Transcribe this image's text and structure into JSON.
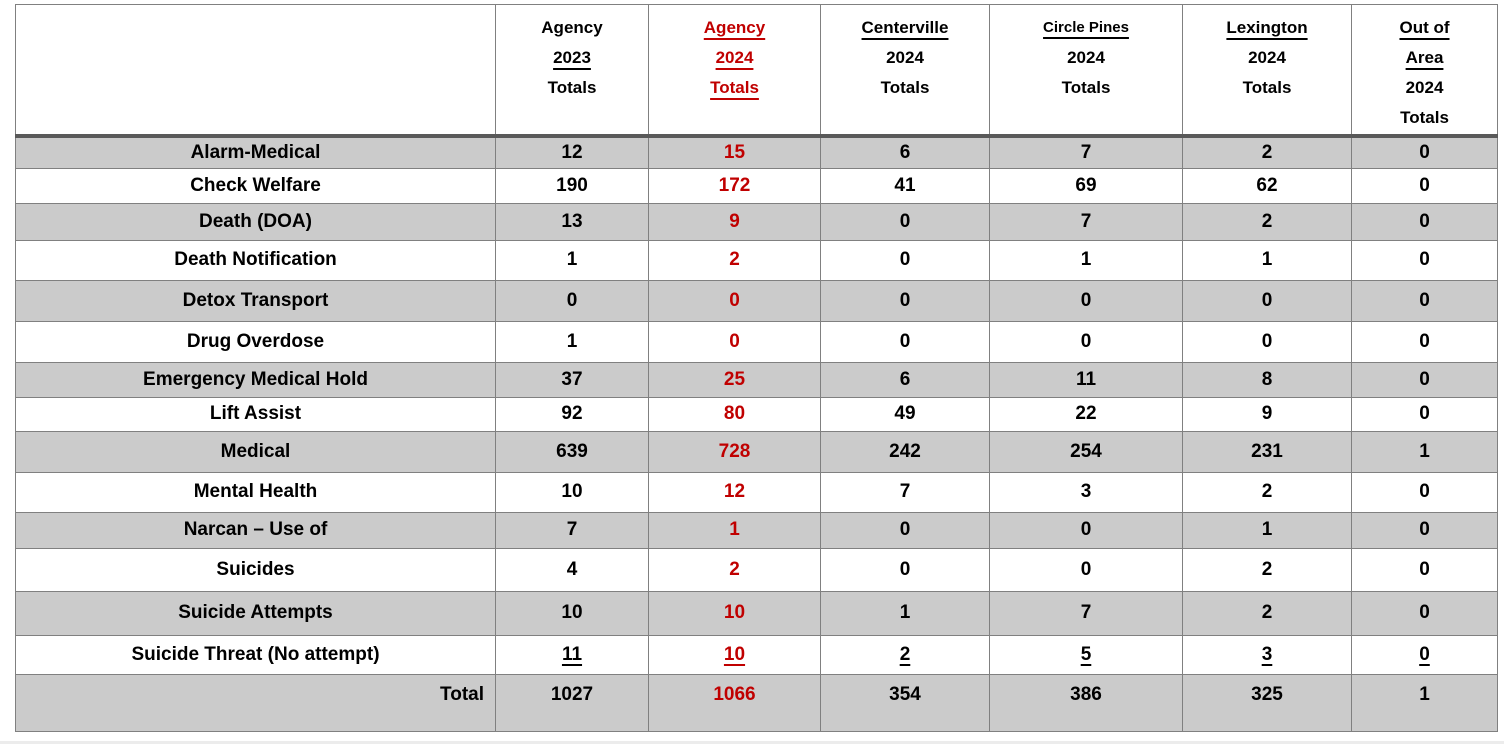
{
  "table": {
    "colors": {
      "accent_red": "#c00000",
      "row_shade": "#cbcbcb",
      "grid_line": "#808080",
      "header_rule": "#595959",
      "footer_strip": "#ececec",
      "page_background": "#ffffff"
    },
    "columns": [
      {
        "key": "category",
        "lines": []
      },
      {
        "key": "agency-2023-totals",
        "red": false,
        "lines": [
          {
            "text": "Agency",
            "underline": false
          },
          {
            "text": "2023",
            "underline": true
          },
          {
            "text": "Totals",
            "underline": false
          }
        ]
      },
      {
        "key": "agency-2024-totals",
        "red": true,
        "lines": [
          {
            "text": "Agency",
            "underline": true
          },
          {
            "text": "2024",
            "underline": true
          },
          {
            "text": "Totals",
            "underline": true
          }
        ]
      },
      {
        "key": "centerville-2024-totals",
        "red": false,
        "lines": [
          {
            "text": "Centerville",
            "underline": true
          },
          {
            "text": "2024",
            "underline": false
          },
          {
            "text": "Totals",
            "underline": false
          }
        ]
      },
      {
        "key": "circle-pines-2024-totals",
        "red": false,
        "lines": [
          {
            "text": "Circle Pines",
            "underline": true,
            "small": true
          },
          {
            "text": "2024",
            "underline": false
          },
          {
            "text": "Totals",
            "underline": false
          }
        ]
      },
      {
        "key": "lexington-2024-totals",
        "red": false,
        "lines": [
          {
            "text": "Lexington",
            "underline": true
          },
          {
            "text": "2024",
            "underline": false
          },
          {
            "text": "Totals",
            "underline": false
          }
        ]
      },
      {
        "key": "out-of-area-2024-totals",
        "red": false,
        "lines": [
          {
            "text": "Out of",
            "underline": true
          },
          {
            "text": "Area",
            "underline": true
          },
          {
            "text": "2024",
            "underline": false
          },
          {
            "text": "Totals",
            "underline": false
          }
        ]
      }
    ],
    "rows": [
      {
        "label": "Alarm-Medical",
        "values": [
          "12",
          "15",
          "6",
          "7",
          "2",
          "0"
        ]
      },
      {
        "label": "Check Welfare",
        "values": [
          "190",
          "172",
          "41",
          "69",
          "62",
          "0"
        ]
      },
      {
        "label": "Death (DOA)",
        "values": [
          "13",
          "9",
          "0",
          "7",
          "2",
          "0"
        ]
      },
      {
        "label": "Death Notification",
        "values": [
          "1",
          "2",
          "0",
          "1",
          "1",
          "0"
        ]
      },
      {
        "label": "Detox Transport",
        "values": [
          "0",
          "0",
          "0",
          "0",
          "0",
          "0"
        ]
      },
      {
        "label": "Drug Overdose",
        "values": [
          "1",
          "0",
          "0",
          "0",
          "0",
          "0"
        ]
      },
      {
        "label": "Emergency Medical Hold",
        "values": [
          "37",
          "25",
          "6",
          "11",
          "8",
          "0"
        ]
      },
      {
        "label": "Lift Assist",
        "values": [
          "92",
          "80",
          "49",
          "22",
          "9",
          "0"
        ]
      },
      {
        "label": "Medical",
        "values": [
          "639",
          "728",
          "242",
          "254",
          "231",
          "1"
        ]
      },
      {
        "label": "Mental Health",
        "values": [
          "10",
          "12",
          "7",
          "3",
          "2",
          "0"
        ]
      },
      {
        "label": "Narcan – Use of",
        "values": [
          "7",
          "1",
          "0",
          "0",
          "1",
          "0"
        ]
      },
      {
        "label": "Suicides",
        "values": [
          "4",
          "2",
          "0",
          "0",
          "2",
          "0"
        ]
      },
      {
        "label": "Suicide Attempts",
        "values": [
          "10",
          "10",
          "1",
          "7",
          "2",
          "0"
        ]
      },
      {
        "label": "Suicide Threat (No attempt)",
        "values": [
          "11",
          "10",
          "2",
          "5",
          "3",
          "0"
        ],
        "underline_values": true
      },
      {
        "label": "Total",
        "values": [
          "1027",
          "1066",
          "354",
          "386",
          "325",
          "1"
        ],
        "is_total": true,
        "label_align": "right"
      }
    ]
  }
}
